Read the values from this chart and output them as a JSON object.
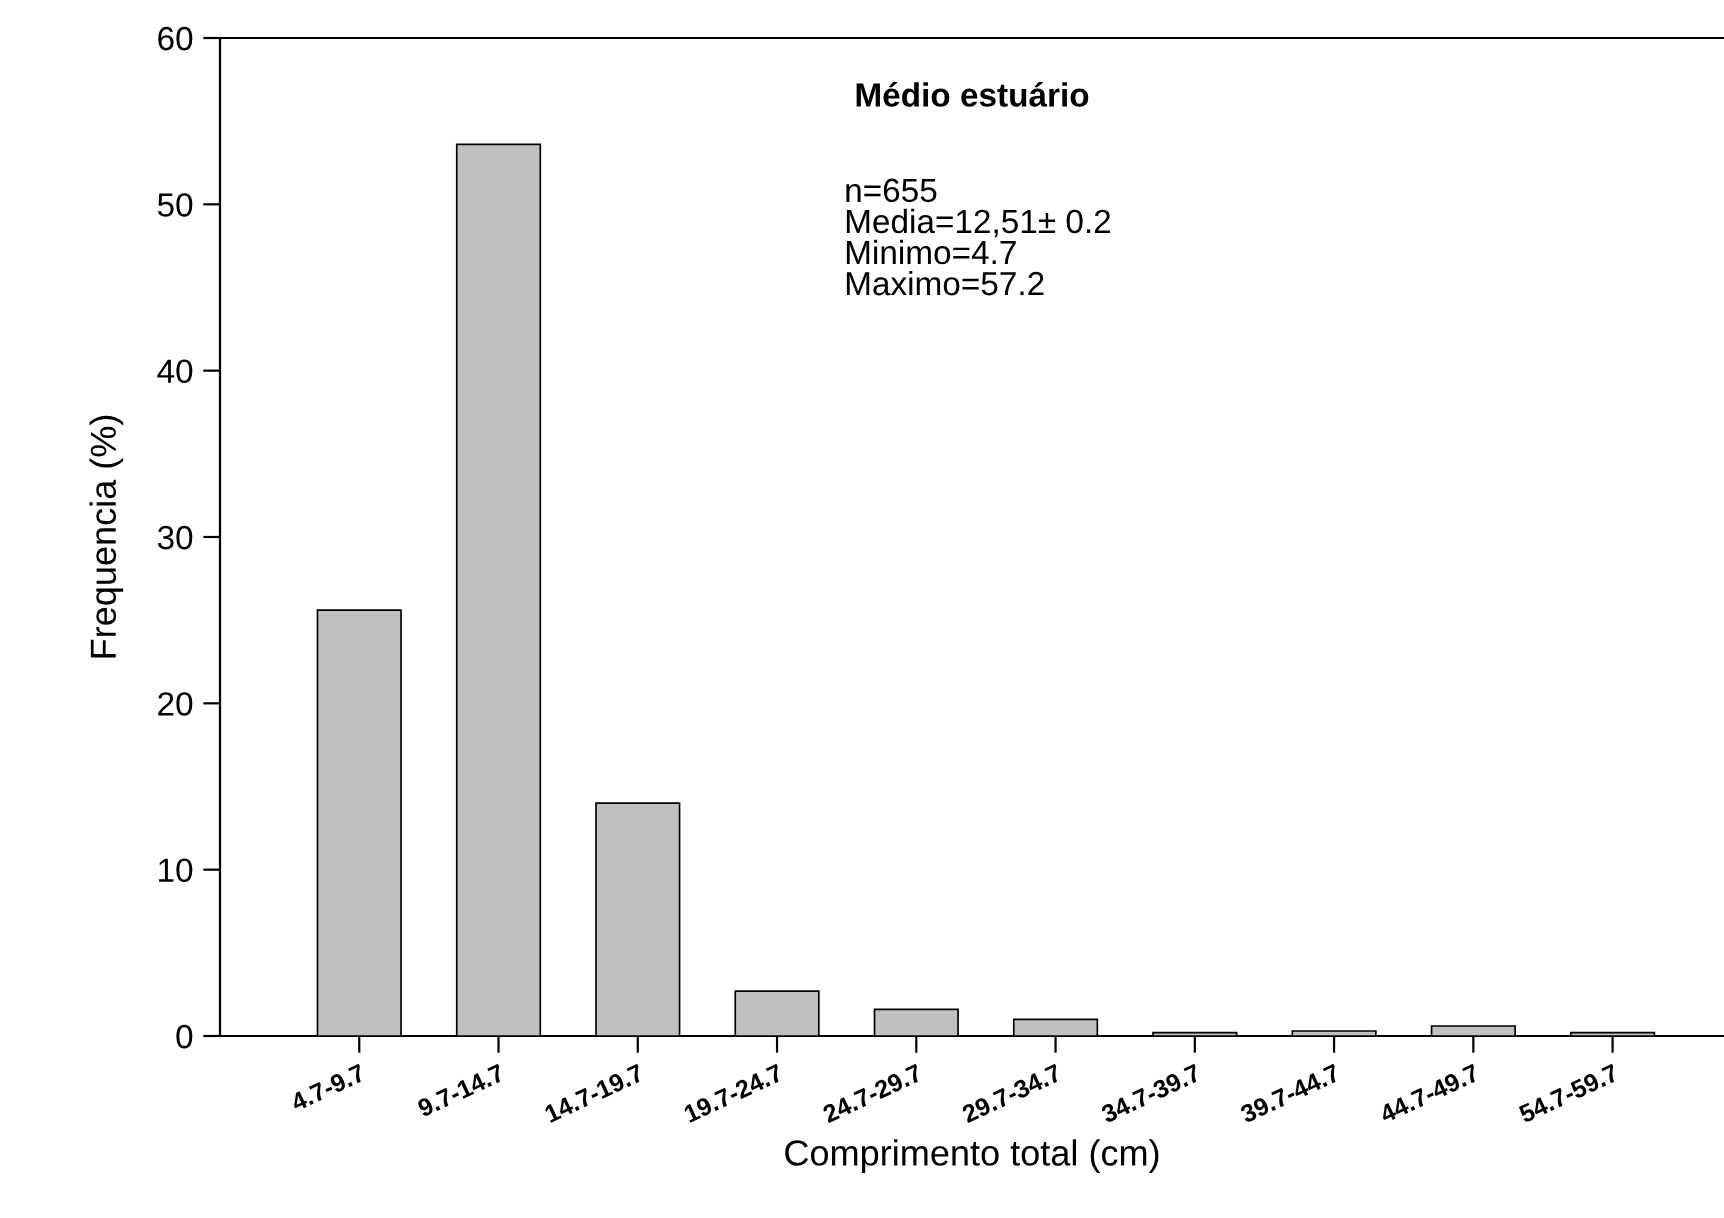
{
  "chart_data": {
    "type": "bar",
    "title": "Médio estuário",
    "xlabel": "Comprimento total (cm)",
    "ylabel": "Frequencia (%)",
    "categories": [
      "4.7-9.7",
      "9.7-14.7",
      "14.7-19.7",
      "19.7-24.7",
      "24.7-29.7",
      "29.7-34.7",
      "34.7-39.7",
      "39.7-44.7",
      "44.7-49.7",
      "54.7-59.7"
    ],
    "values": [
      25.6,
      53.6,
      14.0,
      2.7,
      1.6,
      1.0,
      0.2,
      0.3,
      0.6,
      0.2
    ],
    "color": "#c0c0c0",
    "ylim": [
      0,
      60
    ],
    "yticks": [
      0,
      10,
      20,
      30,
      40,
      50,
      60
    ],
    "grid": false,
    "legend": false,
    "annotations": [
      "n=655",
      "Media=12,51± 0.2",
      "Minimo=4.7",
      "Maximo=57.2"
    ]
  }
}
